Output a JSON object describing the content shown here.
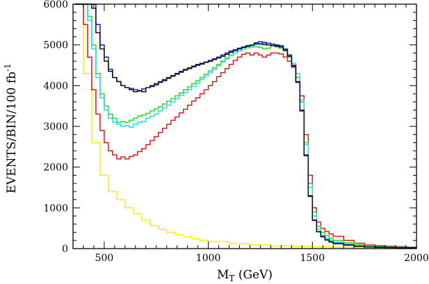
{
  "chart_data": {
    "type": "line",
    "step": true,
    "xlabel_main": "M",
    "xlabel_sub": "T",
    "xlabel_rest": " (GeV)",
    "ylabel_main": "EVENTS/BIN/100 fb",
    "ylabel_sup": "-1",
    "xlim": [
      350,
      2000
    ],
    "ylim": [
      0,
      6000
    ],
    "x_ticks": [
      500,
      1000,
      1500,
      2000
    ],
    "y_ticks": [
      0,
      1000,
      2000,
      3000,
      4000,
      5000,
      6000
    ],
    "x_minor_step": 50,
    "y_minor_step": 200,
    "grid": false,
    "legend": "none",
    "bin_width": 20,
    "series": [
      {
        "color": "#ffee00",
        "x": [
          360,
          400,
          440,
          480,
          520,
          560,
          600,
          640,
          680,
          720,
          760,
          800,
          840,
          880,
          920,
          960,
          1000,
          1100,
          1200,
          1300,
          1400,
          1500,
          1600,
          1800,
          2000
        ],
        "y": [
          6000,
          4300,
          2600,
          1800,
          1400,
          1200,
          1000,
          850,
          700,
          560,
          470,
          400,
          340,
          290,
          240,
          200,
          170,
          120,
          90,
          70,
          55,
          45,
          35,
          25,
          20
        ]
      },
      {
        "color": "#ee1111",
        "x": [
          360,
          400,
          420,
          440,
          460,
          480,
          500,
          520,
          540,
          560,
          580,
          600,
          620,
          640,
          660,
          680,
          700,
          720,
          740,
          760,
          780,
          800,
          820,
          840,
          860,
          880,
          900,
          920,
          940,
          960,
          980,
          1000,
          1020,
          1040,
          1060,
          1080,
          1100,
          1120,
          1140,
          1160,
          1180,
          1200,
          1220,
          1240,
          1260,
          1280,
          1300,
          1320,
          1340,
          1360,
          1380,
          1400,
          1420,
          1440,
          1460,
          1480,
          1500,
          1520,
          1540,
          1560,
          1580,
          1600,
          1650,
          1700,
          1750,
          1800,
          1850,
          1900,
          1950,
          2000
        ],
        "y": [
          6000,
          5500,
          4700,
          3900,
          3300,
          2900,
          2600,
          2400,
          2300,
          2200,
          2250,
          2200,
          2260,
          2300,
          2380,
          2450,
          2550,
          2650,
          2750,
          2850,
          2950,
          3050,
          3150,
          3230,
          3330,
          3420,
          3520,
          3620,
          3700,
          3800,
          3900,
          4000,
          4100,
          4220,
          4320,
          4420,
          4520,
          4620,
          4700,
          4770,
          4800,
          4750,
          4800,
          4750,
          4700,
          4750,
          4800,
          4800,
          4780,
          4700,
          4600,
          4450,
          4200,
          3750,
          2800,
          1800,
          1000,
          650,
          500,
          420,
          360,
          300,
          200,
          130,
          90,
          70,
          60,
          50,
          40,
          30
        ]
      },
      {
        "color": "#22dd22",
        "x": [
          360,
          400,
          420,
          440,
          460,
          480,
          500,
          520,
          540,
          560,
          580,
          600,
          620,
          640,
          660,
          680,
          700,
          720,
          740,
          760,
          780,
          800,
          820,
          840,
          860,
          880,
          900,
          920,
          940,
          960,
          980,
          1000,
          1020,
          1040,
          1060,
          1080,
          1100,
          1120,
          1140,
          1160,
          1180,
          1200,
          1220,
          1240,
          1260,
          1280,
          1300,
          1320,
          1340,
          1360,
          1380,
          1400,
          1420,
          1440,
          1460,
          1480,
          1500,
          1520,
          1540,
          1560,
          1580,
          1600,
          1650,
          1700,
          1750,
          1800,
          1850,
          1900,
          1950,
          2000
        ],
        "y": [
          6000,
          6000,
          5700,
          5000,
          4300,
          3800,
          3500,
          3300,
          3200,
          3100,
          3120,
          3100,
          3150,
          3200,
          3250,
          3280,
          3320,
          3380,
          3430,
          3480,
          3550,
          3620,
          3680,
          3750,
          3820,
          3900,
          3970,
          4050,
          4120,
          4200,
          4280,
          4360,
          4440,
          4520,
          4600,
          4680,
          4750,
          4800,
          4850,
          4900,
          4930,
          4950,
          4950,
          4940,
          4900,
          4920,
          4980,
          4950,
          4920,
          4850,
          4700,
          4500,
          4200,
          3600,
          2600,
          1600,
          900,
          550,
          400,
          320,
          250,
          200,
          140,
          90,
          60,
          50,
          45,
          35,
          30,
          25
        ]
      },
      {
        "color": "#22dddd",
        "x": [
          360,
          400,
          420,
          440,
          460,
          480,
          500,
          520,
          540,
          560,
          580,
          600,
          620,
          640,
          660,
          680,
          700,
          720,
          740,
          760,
          780,
          800,
          820,
          840,
          860,
          880,
          900,
          920,
          940,
          960,
          980,
          1000,
          1020,
          1040,
          1060,
          1080,
          1100,
          1120,
          1140,
          1160,
          1180,
          1200,
          1220,
          1240,
          1260,
          1280,
          1300,
          1320,
          1340,
          1360,
          1380,
          1400,
          1420,
          1440,
          1460,
          1480,
          1500,
          1520,
          1540,
          1560,
          1580,
          1600,
          1650,
          1700,
          1750,
          1800,
          1850,
          1900,
          1950,
          2000
        ],
        "y": [
          6000,
          6000,
          5600,
          4900,
          4200,
          3700,
          3400,
          3200,
          3100,
          3050,
          3000,
          3020,
          2980,
          3050,
          3100,
          3120,
          3200,
          3250,
          3300,
          3380,
          3450,
          3520,
          3600,
          3680,
          3760,
          3830,
          3900,
          3980,
          4060,
          4150,
          4230,
          4310,
          4400,
          4490,
          4580,
          4660,
          4740,
          4800,
          4850,
          4900,
          4950,
          4970,
          5000,
          5000,
          5000,
          5000,
          5000,
          4980,
          4950,
          4880,
          4720,
          4550,
          4300,
          3650,
          2550,
          1500,
          800,
          480,
          330,
          260,
          200,
          160,
          110,
          70,
          50,
          40,
          35,
          30,
          25,
          20
        ]
      },
      {
        "color": "#1a1acc",
        "x": [
          360,
          400,
          420,
          440,
          460,
          480,
          500,
          520,
          540,
          560,
          580,
          600,
          620,
          640,
          660,
          680,
          700,
          720,
          740,
          760,
          780,
          800,
          820,
          840,
          860,
          880,
          900,
          920,
          940,
          960,
          980,
          1000,
          1020,
          1040,
          1060,
          1080,
          1100,
          1120,
          1140,
          1160,
          1180,
          1200,
          1220,
          1240,
          1260,
          1280,
          1300,
          1320,
          1340,
          1360,
          1380,
          1400,
          1420,
          1440,
          1460,
          1480,
          1500,
          1520,
          1540,
          1560,
          1580,
          1600,
          1650,
          1700,
          1750,
          1800,
          1850,
          1900,
          1950,
          2000
        ],
        "y": [
          6000,
          6000,
          6000,
          6000,
          5500,
          5000,
          4700,
          4400,
          4200,
          4100,
          4000,
          3950,
          3930,
          3900,
          3880,
          3920,
          3950,
          4000,
          4050,
          4100,
          4150,
          4200,
          4250,
          4300,
          4350,
          4400,
          4440,
          4480,
          4520,
          4550,
          4580,
          4620,
          4660,
          4700,
          4750,
          4800,
          4850,
          4880,
          4920,
          4950,
          4980,
          5000,
          5050,
          5080,
          5060,
          5040,
          5020,
          5000,
          4980,
          4900,
          4750,
          4500,
          4100,
          3400,
          2300,
          1300,
          700,
          420,
          300,
          220,
          170,
          130,
          90,
          60,
          40,
          35,
          30,
          25,
          20,
          15
        ]
      },
      {
        "color": "#111111",
        "x": [
          360,
          400,
          420,
          440,
          460,
          480,
          500,
          520,
          540,
          560,
          580,
          600,
          620,
          640,
          660,
          680,
          700,
          720,
          740,
          760,
          780,
          800,
          820,
          840,
          860,
          880,
          900,
          920,
          940,
          960,
          980,
          1000,
          1020,
          1040,
          1060,
          1080,
          1100,
          1120,
          1140,
          1160,
          1180,
          1200,
          1220,
          1240,
          1260,
          1280,
          1300,
          1320,
          1340,
          1360,
          1380,
          1400,
          1420,
          1440,
          1460,
          1480,
          1500,
          1520,
          1540,
          1560,
          1580,
          1600,
          1650,
          1700,
          1750,
          1800,
          1850,
          1900,
          1950,
          2000
        ],
        "y": [
          6000,
          6000,
          6000,
          5900,
          5300,
          4900,
          4600,
          4350,
          4200,
          4100,
          4000,
          3950,
          3900,
          3850,
          3870,
          3850,
          3950,
          3980,
          4020,
          4080,
          4120,
          4180,
          4230,
          4280,
          4330,
          4380,
          4420,
          4460,
          4500,
          4530,
          4570,
          4600,
          4640,
          4680,
          4720,
          4770,
          4820,
          4860,
          4900,
          4940,
          4970,
          5000,
          5030,
          5030,
          5020,
          5000,
          4980,
          4970,
          4950,
          4870,
          4720,
          4480,
          4080,
          3380,
          2280,
          1280,
          690,
          410,
          290,
          210,
          160,
          120,
          85,
          55,
          40,
          30,
          25,
          20,
          15,
          12
        ]
      }
    ]
  }
}
